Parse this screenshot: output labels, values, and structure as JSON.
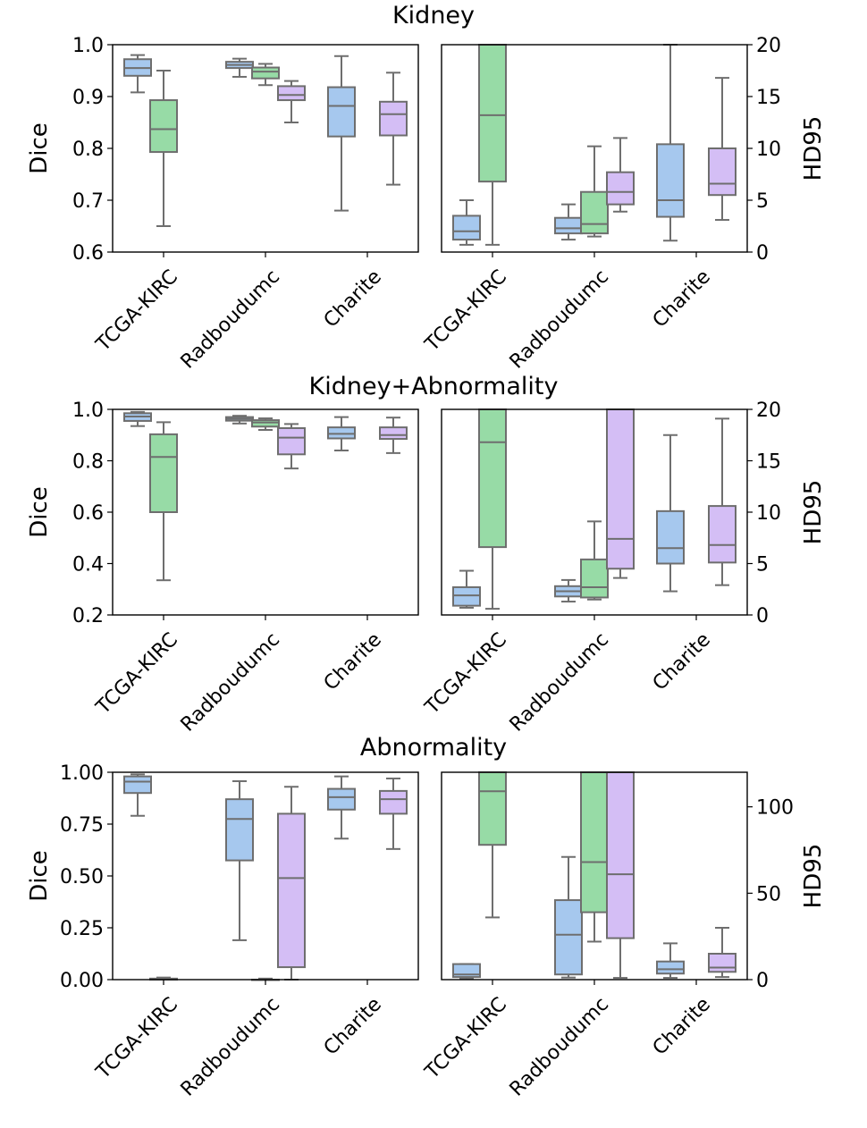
{
  "colors": {
    "blue": "#a6c8ee",
    "green": "#97dba6",
    "purple": "#d4bef5",
    "line": "#6e6e6e"
  },
  "chart_data": [
    {
      "type": "box",
      "title": "Kidney",
      "categories": [
        "TCGA-KIRC",
        "Radboudumc",
        "Charite"
      ],
      "left": {
        "ylabel": "Dice",
        "ylim": [
          0.6,
          1.0
        ],
        "yticks": [
          "0.6",
          "0.7",
          "0.8",
          "0.9",
          "1.0"
        ],
        "ytick_values": [
          0.6,
          0.7,
          0.8,
          0.9,
          1.0
        ],
        "boxes": [
          {
            "cat": 0,
            "slot": 0,
            "color": "blue",
            "whislo": 0.908,
            "q1": 0.94,
            "med": 0.955,
            "q3": 0.972,
            "whishi": 0.98
          },
          {
            "cat": 0,
            "slot": 1,
            "color": "green",
            "whislo": 0.65,
            "q1": 0.793,
            "med": 0.837,
            "q3": 0.893,
            "whishi": 0.95
          },
          {
            "cat": 1,
            "slot": 0,
            "color": "blue",
            "whislo": 0.938,
            "q1": 0.955,
            "med": 0.961,
            "q3": 0.967,
            "whishi": 0.973
          },
          {
            "cat": 1,
            "slot": 1,
            "color": "green",
            "whislo": 0.922,
            "q1": 0.935,
            "med": 0.948,
            "q3": 0.956,
            "whishi": 0.963
          },
          {
            "cat": 1,
            "slot": 2,
            "color": "purple",
            "whislo": 0.85,
            "q1": 0.893,
            "med": 0.903,
            "q3": 0.92,
            "whishi": 0.93
          },
          {
            "cat": 2,
            "slot": 0,
            "color": "blue",
            "whislo": 0.68,
            "q1": 0.823,
            "med": 0.882,
            "q3": 0.918,
            "whishi": 0.978
          },
          {
            "cat": 2,
            "slot": 2,
            "color": "purple",
            "whislo": 0.73,
            "q1": 0.825,
            "med": 0.866,
            "q3": 0.89,
            "whishi": 0.946
          }
        ]
      },
      "right": {
        "ylabel": "HD95",
        "ylim": [
          0,
          20
        ],
        "yticks": [
          "0",
          "5",
          "10",
          "15",
          "20"
        ],
        "ytick_values": [
          0,
          5,
          10,
          15,
          20
        ],
        "boxes": [
          {
            "cat": 0,
            "slot": 0,
            "color": "blue",
            "whislo": 0.7,
            "q1": 1.2,
            "med": 2.0,
            "q3": 3.5,
            "whishi": 5.0
          },
          {
            "cat": 0,
            "slot": 1,
            "color": "green",
            "whislo": 0.7,
            "q1": 6.8,
            "med": 13.2,
            "q3": 20,
            "whishi": 20
          },
          {
            "cat": 1,
            "slot": 0,
            "color": "blue",
            "whislo": 1.2,
            "q1": 1.8,
            "med": 2.3,
            "q3": 3.3,
            "whishi": 4.6
          },
          {
            "cat": 1,
            "slot": 1,
            "color": "green",
            "whislo": 1.5,
            "q1": 1.8,
            "med": 2.7,
            "q3": 5.8,
            "whishi": 10.2
          },
          {
            "cat": 1,
            "slot": 2,
            "color": "purple",
            "whislo": 3.9,
            "q1": 4.6,
            "med": 5.8,
            "q3": 7.7,
            "whishi": 11.0
          },
          {
            "cat": 2,
            "slot": 0,
            "color": "blue",
            "whislo": 1.1,
            "q1": 3.4,
            "med": 5.0,
            "q3": 10.4,
            "whishi": 20
          },
          {
            "cat": 2,
            "slot": 2,
            "color": "purple",
            "whislo": 3.1,
            "q1": 5.5,
            "med": 6.6,
            "q3": 10.0,
            "whishi": 16.8
          }
        ]
      }
    },
    {
      "type": "box",
      "title": "Kidney+Abnormality",
      "categories": [
        "TCGA-KIRC",
        "Radboudumc",
        "Charite"
      ],
      "left": {
        "ylabel": "Dice",
        "ylim": [
          0.2,
          1.0
        ],
        "yticks": [
          "0.2",
          "0.4",
          "0.6",
          "0.8",
          "1.0"
        ],
        "ytick_values": [
          0.2,
          0.4,
          0.6,
          0.8,
          1.0
        ],
        "boxes": [
          {
            "cat": 0,
            "slot": 0,
            "color": "blue",
            "whislo": 0.935,
            "q1": 0.955,
            "med": 0.972,
            "q3": 0.985,
            "whishi": 0.99
          },
          {
            "cat": 0,
            "slot": 1,
            "color": "green",
            "whislo": 0.335,
            "q1": 0.6,
            "med": 0.815,
            "q3": 0.903,
            "whishi": 0.95
          },
          {
            "cat": 1,
            "slot": 0,
            "color": "blue",
            "whislo": 0.945,
            "q1": 0.956,
            "med": 0.963,
            "q3": 0.97,
            "whishi": 0.975
          },
          {
            "cat": 1,
            "slot": 1,
            "color": "green",
            "whislo": 0.92,
            "q1": 0.933,
            "med": 0.949,
            "q3": 0.958,
            "whishi": 0.965
          },
          {
            "cat": 1,
            "slot": 2,
            "color": "purple",
            "whislo": 0.77,
            "q1": 0.825,
            "med": 0.89,
            "q3": 0.927,
            "whishi": 0.943
          },
          {
            "cat": 2,
            "slot": 0,
            "color": "blue",
            "whislo": 0.84,
            "q1": 0.887,
            "med": 0.905,
            "q3": 0.93,
            "whishi": 0.97
          },
          {
            "cat": 2,
            "slot": 2,
            "color": "purple",
            "whislo": 0.83,
            "q1": 0.885,
            "med": 0.9,
            "q3": 0.93,
            "whishi": 0.968
          }
        ]
      },
      "right": {
        "ylabel": "HD95",
        "ylim": [
          0,
          20
        ],
        "yticks": [
          "0",
          "5",
          "10",
          "15",
          "20"
        ],
        "ytick_values": [
          0,
          5,
          10,
          15,
          20
        ],
        "boxes": [
          {
            "cat": 0,
            "slot": 0,
            "color": "blue",
            "whislo": 0.7,
            "q1": 0.9,
            "med": 1.9,
            "q3": 2.7,
            "whishi": 4.3
          },
          {
            "cat": 0,
            "slot": 1,
            "color": "green",
            "whislo": 0.6,
            "q1": 6.6,
            "med": 16.8,
            "q3": 20,
            "whishi": 20
          },
          {
            "cat": 1,
            "slot": 0,
            "color": "blue",
            "whislo": 1.3,
            "q1": 1.8,
            "med": 2.3,
            "q3": 2.8,
            "whishi": 3.4
          },
          {
            "cat": 1,
            "slot": 1,
            "color": "green",
            "whislo": 1.5,
            "q1": 1.7,
            "med": 2.7,
            "q3": 5.4,
            "whishi": 9.1
          },
          {
            "cat": 1,
            "slot": 2,
            "color": "purple",
            "whislo": 3.6,
            "q1": 4.5,
            "med": 7.4,
            "q3": 20,
            "whishi": 20
          },
          {
            "cat": 2,
            "slot": 0,
            "color": "blue",
            "whislo": 2.3,
            "q1": 5.0,
            "med": 6.5,
            "q3": 10.1,
            "whishi": 17.5
          },
          {
            "cat": 2,
            "slot": 2,
            "color": "purple",
            "whislo": 2.9,
            "q1": 5.1,
            "med": 6.8,
            "q3": 10.6,
            "whishi": 19.1
          }
        ]
      }
    },
    {
      "type": "box",
      "title": "Abnormality",
      "categories": [
        "TCGA-KIRC",
        "Radboudumc",
        "Charite"
      ],
      "left": {
        "ylabel": "Dice",
        "ylim": [
          0.0,
          1.0
        ],
        "yticks": [
          "0.00",
          "0.25",
          "0.50",
          "0.75",
          "1.00"
        ],
        "ytick_values": [
          0,
          0.25,
          0.5,
          0.75,
          1.0
        ],
        "boxes": [
          {
            "cat": 0,
            "slot": 0,
            "color": "blue",
            "whislo": 0.79,
            "q1": 0.9,
            "med": 0.955,
            "q3": 0.98,
            "whishi": 0.99
          },
          {
            "cat": 0,
            "slot": 1,
            "color": "green",
            "whislo": 0.0,
            "q1": 0.0,
            "med": 0.0,
            "q3": 0.005,
            "whishi": 0.01
          },
          {
            "cat": 1,
            "slot": 0,
            "color": "blue",
            "whislo": 0.19,
            "q1": 0.575,
            "med": 0.775,
            "q3": 0.87,
            "whishi": 0.957
          },
          {
            "cat": 1,
            "slot": 1,
            "color": "green",
            "whislo": 0.0,
            "q1": 0.0,
            "med": 0.0,
            "q3": 0.0,
            "whishi": 0.005
          },
          {
            "cat": 1,
            "slot": 2,
            "color": "purple",
            "whislo": 0.0,
            "q1": 0.06,
            "med": 0.49,
            "q3": 0.8,
            "whishi": 0.93
          },
          {
            "cat": 2,
            "slot": 0,
            "color": "blue",
            "whislo": 0.68,
            "q1": 0.82,
            "med": 0.88,
            "q3": 0.92,
            "whishi": 0.98
          },
          {
            "cat": 2,
            "slot": 2,
            "color": "purple",
            "whislo": 0.63,
            "q1": 0.8,
            "med": 0.87,
            "q3": 0.91,
            "whishi": 0.97
          }
        ]
      },
      "right": {
        "ylabel": "HD95",
        "ylim": [
          0,
          120
        ],
        "yticks": [
          "0",
          "50",
          "100"
        ],
        "ytick_values": [
          0,
          50,
          100
        ],
        "boxes": [
          {
            "cat": 0,
            "slot": 0,
            "color": "blue",
            "whislo": 0.5,
            "q1": 1.5,
            "med": 3.0,
            "q3": 9.0,
            "whishi": 9.0
          },
          {
            "cat": 0,
            "slot": 1,
            "color": "green",
            "whislo": 36,
            "q1": 78,
            "med": 109,
            "q3": 120,
            "whishi": 120
          },
          {
            "cat": 1,
            "slot": 0,
            "color": "blue",
            "whislo": 1.2,
            "q1": 3.0,
            "med": 26.0,
            "q3": 46.0,
            "whishi": 71.0
          },
          {
            "cat": 1,
            "slot": 1,
            "color": "green",
            "whislo": 22,
            "q1": 39,
            "med": 68,
            "q3": 120,
            "whishi": 120
          },
          {
            "cat": 1,
            "slot": 2,
            "color": "purple",
            "whislo": 1.0,
            "q1": 24,
            "med": 61,
            "q3": 120,
            "whishi": 120
          },
          {
            "cat": 2,
            "slot": 0,
            "color": "blue",
            "whislo": 1.0,
            "q1": 3.5,
            "med": 6.0,
            "q3": 10.5,
            "whishi": 21.0
          },
          {
            "cat": 2,
            "slot": 2,
            "color": "purple",
            "whislo": 1.5,
            "q1": 4.5,
            "med": 7.0,
            "q3": 15.0,
            "whishi": 30.0
          }
        ]
      }
    }
  ]
}
